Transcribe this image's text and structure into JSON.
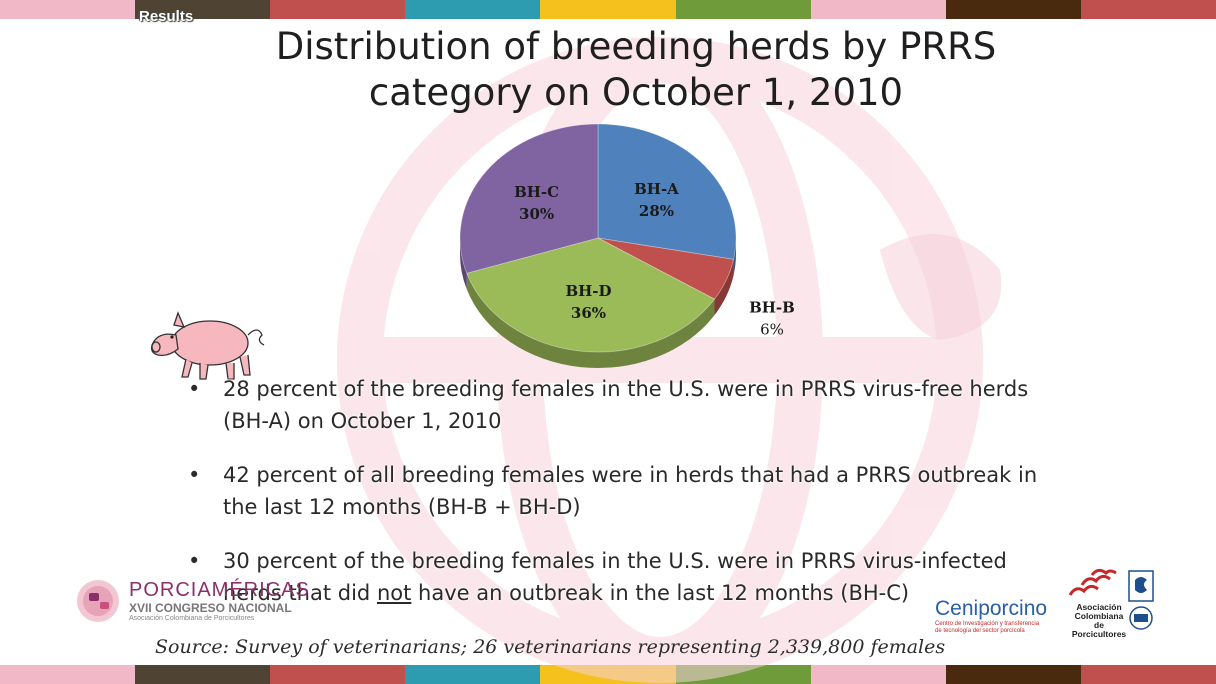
{
  "palette": {
    "stripes": [
      "#f1b8c8",
      "#4f4434",
      "#c0504d",
      "#2d9bb0",
      "#f4c11d",
      "#6f9b3a",
      "#f1b8c8",
      "#4a2a0f",
      "#c0504d"
    ]
  },
  "header": {
    "section_tag": "Results",
    "title_line1": "Distribution of breeding herds by PRRS",
    "title_line2": "category on October 1, 2010"
  },
  "chart_data": {
    "type": "pie",
    "slices": [
      {
        "label": "BH-A",
        "value": 28,
        "value_label": "28%",
        "color": "#4f81bd"
      },
      {
        "label": "BH-B",
        "value": 6,
        "value_label": "6%",
        "color": "#c0504d"
      },
      {
        "label": "BH-D",
        "value": 36,
        "value_label": "36%",
        "color": "#9bbb59"
      },
      {
        "label": "BH-C",
        "value": 30,
        "value_label": "30%",
        "color": "#8064a2"
      }
    ]
  },
  "bullets": {
    "b1": "28 percent of the breeding females in the U.S. were in PRRS virus-free herds (BH-A) on October 1, 2010",
    "b2": "42 percent of all breeding females were in herds that had a PRRS outbreak in the last 12 months (BH-B + BH-D)",
    "b3_before": "30 percent of the breeding females in the U.S. were in PRRS virus-infected herds that did ",
    "b3_underlined": "not",
    "b3_after": " have an outbreak in the last 12 months (BH-C)"
  },
  "source": "Source: Survey of veterinarians; 26 veterinarians representing 2,339,800 females",
  "logos": {
    "porciamericas": {
      "name": "PORCIAMÉRICAS",
      "line1": "XVII CONGRESO NACIONAL",
      "line2": "Asociación Colombiana de Porcicultores"
    },
    "ceniporcino": {
      "name": "Ceniporcino",
      "line1": "Centro de Investigación y transferencia",
      "line2": "de tecnología del sector porcícola"
    },
    "asociacion": {
      "line1": "Asociación",
      "line2": "Colombiana",
      "line3": "de Porcicultores"
    }
  }
}
